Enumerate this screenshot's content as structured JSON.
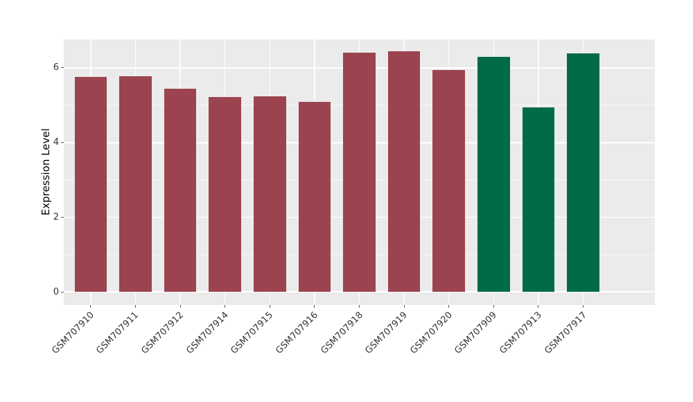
{
  "chart_data": {
    "type": "bar",
    "title": "",
    "xlabel": "",
    "ylabel": "Expression Level",
    "categories": [
      "GSM707910",
      "GSM707911",
      "GSM707912",
      "GSM707914",
      "GSM707915",
      "GSM707916",
      "GSM707918",
      "GSM707919",
      "GSM707920",
      "GSM707909",
      "GSM707913",
      "GSM707917"
    ],
    "values": [
      5.76,
      5.78,
      5.45,
      5.21,
      5.23,
      5.09,
      6.41,
      6.45,
      5.95,
      6.29,
      4.95,
      6.39
    ],
    "bar_colors": [
      "#9B4450",
      "#9B4450",
      "#9B4450",
      "#9B4450",
      "#9B4450",
      "#9B4450",
      "#9B4450",
      "#9B4450",
      "#9B4450",
      "#016B47",
      "#016B47",
      "#016B47"
    ],
    "palette": {
      "maroon": "#9B4450",
      "green": "#016B47"
    },
    "yticks": [
      0,
      2,
      4,
      6
    ],
    "minor_gridlines": [
      1,
      3,
      5
    ],
    "ylim": [
      -0.35,
      6.76
    ],
    "grid": true,
    "legend_position": "none",
    "panel_bg": "#EBEBEB",
    "grid_color": "#FFFFFF",
    "x_tick_rotation_deg": 45
  }
}
